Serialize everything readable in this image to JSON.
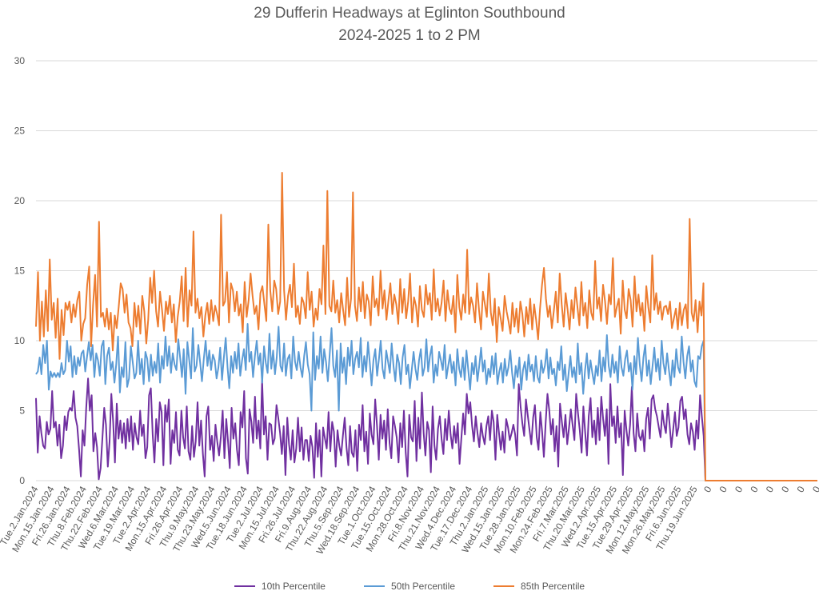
{
  "chart_data": {
    "type": "line",
    "title": "29 Dufferin Headways at Eglinton Southbound",
    "subtitle": "2024-2025 1 to 2 PM",
    "xlabel": "",
    "ylabel": "",
    "ylim": [
      0,
      30
    ],
    "yticks": [
      0,
      5,
      10,
      15,
      20,
      25,
      30
    ],
    "grid": "horizontal",
    "legend": "bottom",
    "x_tick_labels": [
      "Tue.2.Jan.2024",
      "Mon.15.Jan.2024",
      "Fri.26.Jan.2024",
      "Thu.8.Feb.2024",
      "Thu.22.Feb.2024",
      "Wed.6.Mar.2024",
      "Tue.19.Mar.2024",
      "Tue.2.Apr.2024",
      "Mon.15.Apr.2024",
      "Fri.26.Apr.2024",
      "Thu.9.May.2024",
      "Thu.23.May.2024",
      "Wed.5.Jun.2024",
      "Tue.18.Jun.2024",
      "Tue.2.Jul.2024",
      "Mon.15.Jul.2024",
      "Fri.26.Jul.2024",
      "Fri.9.Aug.2024",
      "Thu.22.Aug.2024",
      "Thu.5.Sep.2024",
      "Wed.18.Sep.2024",
      "Tue.1.Oct.2024",
      "Tue.15.Oct.2024",
      "Mon.28.Oct.2024",
      "Fri.8.Nov.2024",
      "Thu.21.Nov.2024",
      "Wed.4.Dec.2024",
      "Tue.17.Dec.2024",
      "Thu.2.Jan.2025",
      "Wed.15.Jan.2025",
      "Tue.28.Jan.2025",
      "Mon.10.Feb.2025",
      "Mon.24.Feb.2025",
      "Fri.7.Mar.2025",
      "Thu.20.Mar.2025",
      "Wed.2.Apr.2025",
      "Tue.15.Apr.2025",
      "Tue.29.Apr.2025",
      "Mon.12.May.2025",
      "Mon.26.May.2025",
      "Fri.6.Jun.2025",
      "Thu.19.Jun.2025",
      "0",
      "0",
      "0",
      "0",
      "0",
      "0",
      "0",
      "0",
      "0"
    ],
    "series": [
      {
        "name": "10th Percentile",
        "color": "#7030a0",
        "values": [
          5.9,
          2.0,
          4.6,
          3.4,
          2.5,
          2.3,
          4.2,
          3.3,
          3.7,
          6.4,
          3.8,
          4.2,
          2.5,
          4.0,
          1.6,
          2.5,
          4.6,
          3.6,
          4.9,
          5.2,
          5.0,
          6.4,
          4.5,
          3.9,
          2.2,
          0.3,
          3.6,
          2.5,
          5.2,
          7.3,
          5.0,
          6.1,
          2.1,
          3.4,
          2.4,
          0.1,
          0.9,
          3.0,
          5.2,
          4.0,
          1.0,
          2.8,
          6.2,
          4.2,
          1.3,
          5.5,
          3.0,
          4.3,
          2.7,
          4.1,
          2.3,
          4.4,
          2.8,
          4.6,
          2.2,
          4.1,
          3.1,
          2.6,
          5.0,
          3.2,
          4.0,
          1.6,
          2.4,
          6.1,
          6.6,
          3.3,
          1.3,
          4.4,
          2.8,
          5.6,
          4.9,
          1.1,
          5.4,
          4.2,
          5.8,
          1.2,
          3.6,
          2.7,
          4.9,
          2.2,
          1.8,
          5.0,
          3.1,
          2.3,
          5.3,
          2.1,
          1.5,
          3.9,
          1.7,
          2.8,
          5.6,
          2.5,
          4.3,
          1.9,
          0.3,
          4.6,
          5.3,
          2.2,
          3.2,
          1.4,
          4.0,
          2.8,
          1.8,
          3.1,
          5.0,
          1.6,
          4.4,
          2.8,
          0.9,
          5.2,
          3.0,
          4.1,
          2.2,
          1.1,
          4.9,
          3.8,
          6.4,
          1.6,
          0.5,
          5.1,
          4.2,
          2.7,
          6.0,
          3.0,
          4.3,
          2.3,
          7.2,
          3.3,
          4.6,
          1.5,
          4.1,
          4.0,
          2.6,
          3.0,
          5.4,
          4.5,
          3.4,
          1.9,
          3.9,
          0.4,
          4.5,
          2.6,
          1.5,
          3.6,
          1.3,
          2.3,
          4.5,
          2.1,
          3.8,
          1.5,
          2.9,
          2.9,
          1.4,
          3.2,
          2.4,
          0.2,
          4.1,
          1.7,
          3.6,
          0.3,
          3.8,
          3.0,
          2.3,
          4.9,
          2.1,
          4.2,
          3.5,
          1.0,
          3.6,
          2.5,
          1.8,
          3.2,
          4.5,
          2.4,
          1.1,
          3.9,
          2.0,
          1.7,
          3.6,
          0.7,
          4.0,
          2.9,
          5.4,
          2.1,
          3.5,
          1.2,
          4.8,
          3.3,
          2.6,
          5.8,
          3.9,
          1.5,
          4.7,
          3.0,
          4.3,
          2.2,
          5.1,
          2.7,
          1.6,
          4.6,
          3.9,
          3.1,
          1.3,
          4.1,
          2.4,
          5.0,
          2.0,
          0.3,
          4.7,
          3.1,
          2.8,
          5.7,
          1.4,
          4.5,
          2.3,
          6.3,
          3.4,
          1.8,
          4.2,
          3.6,
          0.6,
          5.3,
          2.5,
          1.5,
          3.7,
          4.6,
          3.0,
          1.9,
          4.4,
          2.9,
          5.0,
          3.3,
          2.3,
          3.9,
          2.7,
          4.1,
          1.2,
          3.0,
          4.8,
          3.3,
          6.2,
          4.8,
          5.6,
          3.9,
          2.8,
          4.6,
          3.4,
          2.4,
          4.1,
          3.2,
          2.6,
          3.9,
          4.6,
          2.9,
          5.0,
          4.2,
          1.5,
          4.7,
          3.4,
          2.2,
          3.5,
          2.0,
          4.4,
          3.8,
          2.9,
          3.4,
          4.0,
          3.3,
          1.8,
          6.9,
          5.3,
          4.1,
          3.2,
          5.8,
          4.7,
          3.6,
          2.6,
          4.5,
          5.4,
          3.1,
          2.2,
          4.9,
          3.5,
          1.7,
          4.2,
          6.2,
          5.0,
          3.3,
          4.4,
          2.1,
          3.9,
          1.0,
          5.5,
          4.2,
          3.1,
          4.7,
          2.6,
          3.8,
          5.1,
          4.0,
          2.9,
          6.2,
          4.8,
          3.6,
          2.0,
          5.3,
          3.4,
          1.8,
          4.6,
          5.9,
          3.1,
          4.3,
          2.6,
          5.2,
          2.9,
          6.0,
          4.4,
          3.2,
          5.1,
          1.2,
          6.9,
          3.9,
          4.6,
          2.7,
          5.3,
          3.1,
          4.1,
          0.4,
          5.0,
          3.6,
          2.5,
          4.0,
          6.7,
          3.4,
          2.1,
          4.8,
          3.2,
          2.9,
          3.6,
          2.1,
          4.4,
          5.2,
          3.0,
          5.8,
          6.1,
          5.1,
          4.6,
          3.8,
          3.1,
          5.0,
          4.0,
          3.4,
          5.5,
          4.1,
          2.4,
          3.6,
          4.9,
          3.2,
          3.8,
          5.7,
          6.0,
          4.4,
          5.1,
          3.3,
          2.6,
          4.1,
          3.5,
          2.2,
          4.3,
          3.0,
          6.1,
          4.6,
          3.2,
          0
        ],
        "note_zeros": "series ends at 0 after 19 Jun 2025"
      },
      {
        "name": "50th Percentile",
        "color": "#5b9bd5",
        "values": [
          7.6,
          7.8,
          8.8,
          7.6,
          9.7,
          8.4,
          10.0,
          6.5,
          7.8,
          7.4,
          7.7,
          7.4,
          7.7,
          7.4,
          8.4,
          7.6,
          7.9,
          10.0,
          8.5,
          9.6,
          7.4,
          8.9,
          7.6,
          8.8,
          8.2,
          9.1,
          9.3,
          7.8,
          8.9,
          9.9,
          8.6,
          9.7,
          7.4,
          9.1,
          8.6,
          7.5,
          9.6,
          10.0,
          6.9,
          8.9,
          9.5,
          7.9,
          8.5,
          7.0,
          8.3,
          10.3,
          6.3,
          8.1,
          7.4,
          9.9,
          6.7,
          7.3,
          9.6,
          8.5,
          7.3,
          7.7,
          10.0,
          7.6,
          8.7,
          6.9,
          9.2,
          8.7,
          7.1,
          9.0,
          7.5,
          8.5,
          7.7,
          9.8,
          7.0,
          8.9,
          8.0,
          10.3,
          8.2,
          9.6,
          7.7,
          9.1,
          8.3,
          7.9,
          10.1,
          8.8,
          7.4,
          9.4,
          6.2,
          9.9,
          8.6,
          7.3,
          10.9,
          7.8,
          8.2,
          9.7,
          8.4,
          7.1,
          8.7,
          10.0,
          8.2,
          9.3,
          7.9,
          9.0,
          8.6,
          7.3,
          8.1,
          9.5,
          7.2,
          8.8,
          10.2,
          8.1,
          6.6,
          8.9,
          7.7,
          9.2,
          8.0,
          9.8,
          7.5,
          8.6,
          9.4,
          7.9,
          11.2,
          8.5,
          9.2,
          7.4,
          8.9,
          10.0,
          8.3,
          9.1,
          7.0,
          9.6,
          8.4,
          7.7,
          10.5,
          8.0,
          9.3,
          7.6,
          8.8,
          11.0,
          8.2,
          7.8,
          9.8,
          7.5,
          8.7,
          9.0,
          7.3,
          10.3,
          8.5,
          7.9,
          9.2,
          8.1,
          7.4,
          8.9,
          9.9,
          8.3,
          7.6,
          5.0,
          10.6,
          7.2,
          8.9,
          8.0,
          10.3,
          7.7,
          9.4,
          8.5,
          7.1,
          9.0,
          10.9,
          8.2,
          7.4,
          9.3,
          5.0,
          9.8,
          7.7,
          8.8,
          6.9,
          9.5,
          8.2,
          10.0,
          7.6,
          8.7,
          9.2,
          8.1,
          10.2,
          7.4,
          8.9,
          7.8,
          9.9,
          8.4,
          6.8,
          8.6,
          9.4,
          7.5,
          8.7,
          10.0,
          8.0,
          7.3,
          9.3,
          8.5,
          7.7,
          9.8,
          8.2,
          7.1,
          9.0,
          8.4,
          6.9,
          8.8,
          9.7,
          7.6,
          8.3,
          6.6,
          7.9,
          9.2,
          8.0,
          7.2,
          8.6,
          9.4,
          7.5,
          8.1,
          10.1,
          7.8,
          8.9,
          9.6,
          7.0,
          8.3,
          7.5,
          9.2,
          8.6,
          7.9,
          9.7,
          7.3,
          8.2,
          9.0,
          7.7,
          8.5,
          6.8,
          9.4,
          8.0,
          7.4,
          8.8,
          7.2,
          9.3,
          7.9,
          6.5,
          8.4,
          7.6,
          8.9,
          7.1,
          8.2,
          9.5,
          7.8,
          8.6,
          6.9,
          8.0,
          7.4,
          8.9,
          7.6,
          9.1,
          6.9,
          7.8,
          8.4,
          7.0,
          8.7,
          7.5,
          8.1,
          9.3,
          7.7,
          6.6,
          8.2,
          7.4,
          8.8,
          6.5,
          7.9,
          8.5,
          7.2,
          9.0,
          7.8,
          8.3,
          7.1,
          8.9,
          7.4,
          7.0,
          8.6,
          7.7,
          8.2,
          9.4,
          7.3,
          8.8,
          7.6,
          8.0,
          6.8,
          8.5,
          7.9,
          9.6,
          7.2,
          8.3,
          6.4,
          7.7,
          8.9,
          7.4,
          8.1,
          7.0,
          9.8,
          7.6,
          8.4,
          6.2,
          7.9,
          9.1,
          7.3,
          8.6,
          7.7,
          6.9,
          8.2,
          7.5,
          9.3,
          7.1,
          8.8,
          7.8,
          10.4,
          8.2,
          7.4,
          9.0,
          7.7,
          8.5,
          7.0,
          9.6,
          8.1,
          7.5,
          8.7,
          9.3,
          7.8,
          8.4,
          6.5,
          8.9,
          7.6,
          10.2,
          8.3,
          7.1,
          8.8,
          9.7,
          7.5,
          8.6,
          6.9,
          8.2,
          9.5,
          7.8,
          8.7,
          7.2,
          10.0,
          8.4,
          7.6,
          9.1,
          7.9,
          6.8,
          8.6,
          7.4,
          9.4,
          8.1,
          7.7,
          10.3,
          8.5,
          7.3,
          8.9,
          9.6,
          7.8,
          8.6,
          7.1,
          6.7,
          8.9,
          8.7,
          9.6,
          10.0,
          0
        ],
        "note_zeros": "series ends at 0 after 19 Jun 2025"
      },
      {
        "name": "85th Percentile",
        "color": "#ed7d31",
        "values": [
          11.0,
          14.9,
          10.0,
          12.8,
          10.3,
          13.6,
          10.7,
          15.8,
          11.5,
          12.7,
          10.2,
          13.0,
          8.7,
          12.2,
          10.4,
          12.7,
          12.2,
          12.8,
          11.3,
          12.6,
          11.7,
          12.9,
          13.5,
          10.0,
          11.2,
          11.6,
          14.0,
          15.3,
          9.6,
          12.6,
          14.7,
          11.0,
          18.5,
          11.7,
          12.0,
          11.0,
          12.3,
          10.8,
          12.0,
          9.3,
          11.8,
          10.9,
          12.4,
          14.1,
          13.7,
          12.0,
          13.3,
          11.3,
          10.9,
          9.6,
          12.7,
          11.0,
          12.5,
          10.5,
          13.2,
          12.1,
          9.8,
          11.5,
          14.5,
          12.7,
          15.0,
          12.1,
          11.0,
          13.5,
          12.2,
          10.7,
          12.8,
          11.9,
          13.2,
          11.3,
          12.6,
          9.9,
          11.7,
          12.8,
          14.6,
          11.4,
          15.2,
          11.0,
          13.6,
          12.5,
          17.8,
          12.0,
          13.0,
          11.6,
          12.4,
          10.3,
          11.8,
          12.7,
          11.2,
          12.9,
          11.4,
          12.5,
          11.9,
          11.1,
          19.0,
          12.5,
          12.8,
          14.9,
          11.3,
          14.1,
          13.6,
          12.1,
          13.5,
          11.8,
          12.6,
          10.6,
          14.2,
          11.7,
          12.9,
          14.8,
          13.2,
          11.9,
          12.5,
          10.8,
          13.4,
          13.9,
          12.6,
          11.4,
          18.3,
          13.6,
          12.1,
          14.3,
          13.7,
          11.9,
          12.8,
          22.0,
          13.6,
          11.5,
          13.2,
          14.0,
          12.4,
          15.5,
          11.7,
          12.5,
          11.2,
          13.1,
          12.7,
          11.6,
          14.9,
          12.2,
          13.5,
          11.0,
          12.3,
          11.5,
          13.7,
          12.6,
          16.8,
          11.9,
          20.7,
          12.5,
          12.1,
          14.3,
          12.0,
          12.9,
          11.3,
          13.4,
          12.2,
          11.1,
          14.5,
          11.7,
          13.0,
          20.6,
          12.5,
          11.4,
          13.8,
          12.1,
          14.2,
          11.6,
          13.3,
          12.8,
          11.1,
          14.6,
          12.4,
          13.0,
          11.8,
          15.0,
          12.3,
          13.6,
          11.5,
          12.9,
          14.1,
          11.9,
          13.3,
          12.6,
          11.2,
          14.4,
          12.0,
          13.7,
          11.6,
          12.8,
          14.8,
          11.3,
          13.1,
          12.5,
          11.0,
          13.9,
          12.2,
          11.7,
          14.0,
          12.6,
          13.4,
          11.5,
          15.1,
          12.1,
          13.0,
          11.8,
          12.7,
          14.3,
          11.4,
          13.6,
          12.3,
          11.9,
          13.2,
          10.6,
          14.7,
          12.4,
          11.5,
          13.3,
          12.0,
          16.5,
          11.9,
          13.1,
          12.5,
          11.3,
          14.1,
          12.2,
          10.8,
          13.5,
          12.6,
          11.7,
          14.8,
          12.0,
          11.1,
          13.0,
          9.9,
          12.4,
          11.6,
          10.7,
          13.2,
          12.1,
          11.4,
          10.5,
          12.7,
          11.0,
          12.3,
          10.6,
          12.8,
          11.9,
          10.3,
          12.4,
          11.2,
          13.0,
          10.8,
          12.6,
          11.5,
          10.1,
          12.3,
          14.0,
          15.2,
          13.0,
          11.7,
          12.5,
          10.9,
          12.1,
          13.5,
          11.3,
          14.8,
          12.6,
          11.0,
          13.4,
          12.2,
          10.8,
          12.9,
          11.6,
          13.8,
          12.4,
          11.1,
          14.2,
          11.8,
          12.7,
          10.9,
          13.6,
          12.0,
          11.5,
          15.7,
          12.3,
          13.1,
          11.4,
          14.0,
          12.8,
          11.2,
          13.3,
          12.6,
          15.9,
          11.7,
          12.4,
          13.0,
          10.5,
          14.3,
          12.2,
          11.6,
          13.7,
          12.9,
          11.0,
          14.6,
          12.1,
          13.3,
          11.8,
          12.7,
          10.7,
          13.9,
          12.4,
          11.3,
          16.1,
          12.2,
          13.4,
          11.9,
          12.8,
          11.5,
          12.4,
          12.5,
          11.9,
          12.8,
          10.9,
          11.6,
          12.3,
          10.8,
          12.7,
          11.1,
          12.2,
          12.6,
          10.9,
          18.7,
          12.0,
          11.4,
          12.9,
          10.6,
          12.8,
          11.8,
          14.1,
          0
        ],
        "note_zeros": "series ends at 0 after 19 Jun 2025"
      }
    ]
  }
}
